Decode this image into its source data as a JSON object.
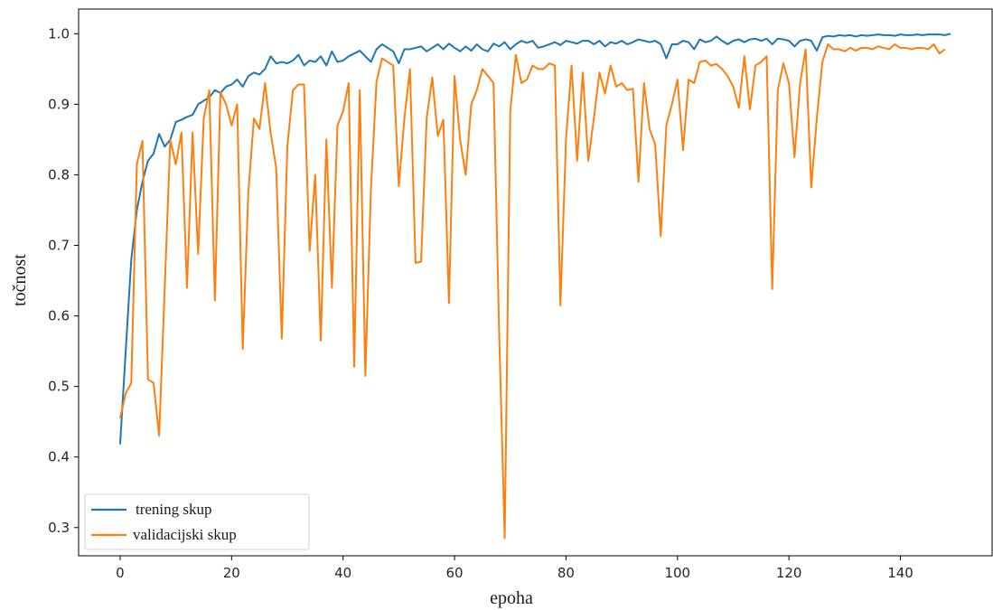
{
  "chart_data": {
    "type": "line",
    "xlabel": "epoha",
    "ylabel": "točnost",
    "xlim": [
      -7.45,
      156.45
    ],
    "ylim": [
      0.26,
      1.035
    ],
    "xticks": [
      0,
      20,
      40,
      60,
      80,
      100,
      120,
      140
    ],
    "yticks": [
      0.3,
      0.4,
      0.5,
      0.6,
      0.7,
      0.8,
      0.9,
      1.0
    ],
    "legend_position": "lower-left",
    "grid": false,
    "colors": {
      "axis": "#000000",
      "text": "#262626"
    },
    "series": [
      {
        "name": "trening skup",
        "color": "#1f77b4",
        "x_start": 0,
        "values": [
          0.418,
          0.55,
          0.68,
          0.75,
          0.79,
          0.82,
          0.83,
          0.858,
          0.84,
          0.85,
          0.875,
          0.878,
          0.882,
          0.885,
          0.9,
          0.905,
          0.91,
          0.92,
          0.916,
          0.925,
          0.928,
          0.935,
          0.925,
          0.94,
          0.945,
          0.942,
          0.95,
          0.968,
          0.958,
          0.96,
          0.958,
          0.962,
          0.97,
          0.955,
          0.962,
          0.96,
          0.968,
          0.955,
          0.975,
          0.96,
          0.962,
          0.968,
          0.972,
          0.976,
          0.968,
          0.96,
          0.978,
          0.985,
          0.98,
          0.975,
          0.958,
          0.978,
          0.978,
          0.98,
          0.982,
          0.975,
          0.98,
          0.985,
          0.978,
          0.986,
          0.98,
          0.975,
          0.982,
          0.976,
          0.985,
          0.978,
          0.975,
          0.986,
          0.982,
          0.988,
          0.978,
          0.985,
          0.99,
          0.987,
          0.99,
          0.98,
          0.982,
          0.985,
          0.988,
          0.984,
          0.99,
          0.988,
          0.986,
          0.99,
          0.99,
          0.985,
          0.99,
          0.982,
          0.988,
          0.986,
          0.99,
          0.985,
          0.988,
          0.992,
          0.99,
          0.988,
          0.99,
          0.985,
          0.965,
          0.985,
          0.985,
          0.99,
          0.988,
          0.978,
          0.992,
          0.988,
          0.99,
          0.996,
          0.99,
          0.985,
          0.99,
          0.992,
          0.988,
          0.992,
          0.993,
          0.99,
          0.993,
          0.985,
          0.993,
          0.992,
          0.99,
          0.982,
          0.99,
          0.992,
          0.99,
          0.976,
          0.995,
          0.997,
          0.996,
          0.998,
          0.997,
          0.998,
          0.996,
          0.998,
          0.997,
          0.998,
          0.999,
          0.998,
          0.998,
          0.997,
          0.999,
          0.998,
          0.998,
          0.999,
          0.998,
          0.999,
          0.999,
          0.999,
          0.998,
          1.0
        ]
      },
      {
        "name": "validacijski skup",
        "color": "#ff7f0e",
        "x_start": 0,
        "values": [
          0.455,
          0.49,
          0.505,
          0.815,
          0.848,
          0.51,
          0.505,
          0.43,
          0.64,
          0.85,
          0.815,
          0.86,
          0.64,
          0.86,
          0.688,
          0.88,
          0.92,
          0.622,
          0.917,
          0.9,
          0.87,
          0.9,
          0.553,
          0.775,
          0.88,
          0.865,
          0.93,
          0.86,
          0.81,
          0.568,
          0.84,
          0.92,
          0.928,
          0.928,
          0.692,
          0.8,
          0.565,
          0.85,
          0.64,
          0.87,
          0.89,
          0.93,
          0.528,
          0.92,
          0.515,
          0.78,
          0.932,
          0.965,
          0.96,
          0.955,
          0.784,
          0.88,
          0.95,
          0.675,
          0.677,
          0.88,
          0.938,
          0.855,
          0.878,
          0.618,
          0.94,
          0.85,
          0.8,
          0.9,
          0.92,
          0.95,
          0.94,
          0.93,
          0.578,
          0.285,
          0.89,
          0.97,
          0.93,
          0.935,
          0.955,
          0.95,
          0.95,
          0.958,
          0.955,
          0.615,
          0.85,
          0.955,
          0.82,
          0.945,
          0.82,
          0.88,
          0.945,
          0.915,
          0.955,
          0.925,
          0.93,
          0.92,
          0.922,
          0.79,
          0.93,
          0.865,
          0.843,
          0.713,
          0.87,
          0.9,
          0.935,
          0.835,
          0.935,
          0.93,
          0.96,
          0.962,
          0.955,
          0.957,
          0.95,
          0.94,
          0.925,
          0.895,
          0.968,
          0.893,
          0.955,
          0.96,
          0.968,
          0.638,
          0.92,
          0.958,
          0.93,
          0.825,
          0.93,
          0.978,
          0.782,
          0.88,
          0.96,
          0.985,
          0.978,
          0.978,
          0.975,
          0.98,
          0.976,
          0.98,
          0.98,
          0.978,
          0.982,
          0.98,
          0.978,
          0.985,
          0.98,
          0.98,
          0.978,
          0.98,
          0.98,
          0.978,
          0.985,
          0.972,
          0.978
        ]
      }
    ]
  }
}
